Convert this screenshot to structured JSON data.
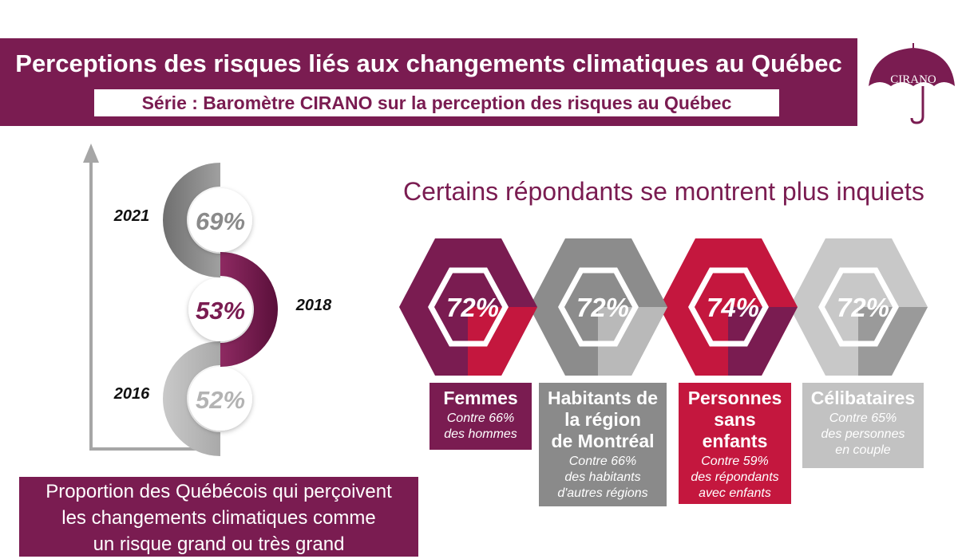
{
  "header": {
    "title": "Perceptions des risques liés aux changements climatiques au Québec",
    "subtitle": "Série : Baromètre CIRANO sur la perception des risques au Québec"
  },
  "logo": {
    "text": "CIRANO",
    "icon": "umbrella-icon"
  },
  "colors": {
    "plum": "#7a1c51",
    "crimson": "#c4173e",
    "gray": "#8a8a8a",
    "light_gray": "#bdbdbd"
  },
  "chart_data": [
    {
      "type": "line",
      "x": [
        "2016",
        "2018",
        "2021"
      ],
      "values": [
        52,
        53,
        69
      ],
      "value_labels": [
        "52%",
        "53%",
        "69%"
      ],
      "caption": [
        "Proportion des Québécois qui perçoivent",
        "les changements climatiques comme",
        "un risque grand ou très grand"
      ]
    },
    {
      "type": "bar",
      "title": "Certains répondants se montrent plus inquiets",
      "categories": [
        "Femmes",
        "Habitants de la région de Montréal",
        "Personnes sans enfants",
        "Célibataires"
      ],
      "category_lines": [
        [
          "Femmes"
        ],
        [
          "Habitants de",
          "la région",
          "de Montréal"
        ],
        [
          "Personnes",
          "sans",
          "enfants"
        ],
        [
          "Célibataires"
        ]
      ],
      "values": [
        72,
        72,
        74,
        72
      ],
      "value_labels": [
        "72%",
        "72%",
        "74%",
        "72%"
      ],
      "comparisons": [
        [
          "Contre 66%",
          "des hommes"
        ],
        [
          "Contre 66%",
          "des habitants",
          "d'autres régions"
        ],
        [
          "Contre 59%",
          "des répondants",
          "avec enfants"
        ],
        [
          "Contre 65%",
          "des personnes",
          "en couple"
        ]
      ],
      "comparison_values": [
        66,
        66,
        59,
        65
      ]
    }
  ]
}
